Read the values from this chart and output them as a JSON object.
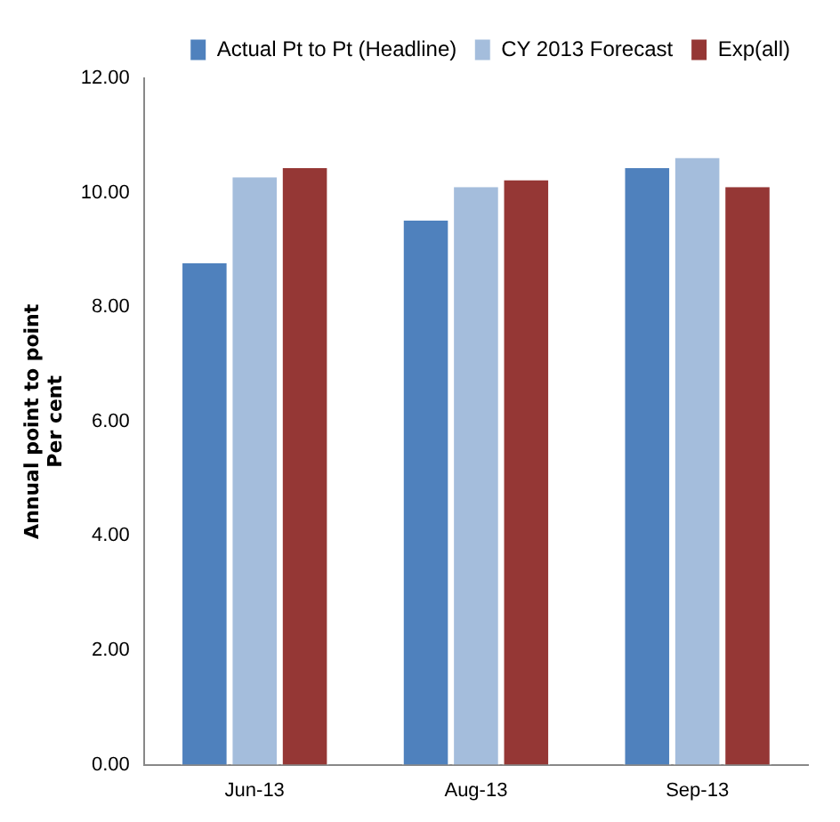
{
  "chart_data": {
    "type": "bar",
    "ylabel": "Annual point to point\nPer cent",
    "categories": [
      "Jun-13",
      "Aug-13",
      "Sep-13"
    ],
    "series": [
      {
        "name": "Actual Pt to Pt (Headline)",
        "color": "#4f81bd",
        "values": [
          8.77,
          9.51,
          10.43
        ]
      },
      {
        "name": "CY 2013 Forecast",
        "color": "#a4bddc",
        "values": [
          10.27,
          10.1,
          10.61
        ]
      },
      {
        "name": "Exp(all)",
        "color": "#953735",
        "values": [
          10.43,
          10.22,
          10.1
        ]
      }
    ],
    "ylim": [
      0,
      12
    ],
    "yticks": [
      {
        "value": 0,
        "label": "0.00"
      },
      {
        "value": 2,
        "label": "2.00"
      },
      {
        "value": 4,
        "label": "4.00"
      },
      {
        "value": 6,
        "label": "6.00"
      },
      {
        "value": 8,
        "label": "8.00"
      },
      {
        "value": 10,
        "label": "10.00"
      },
      {
        "value": 12,
        "label": "12.00"
      }
    ],
    "grid": false,
    "legend": "top"
  }
}
